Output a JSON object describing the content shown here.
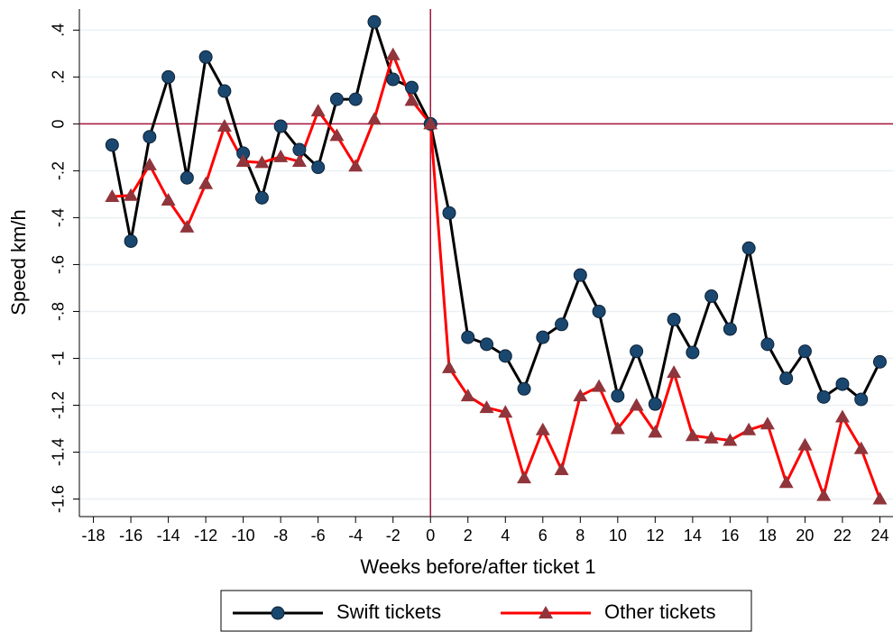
{
  "chart_data": {
    "type": "line",
    "xlabel": "Weeks before/after ticket 1",
    "ylabel": "Speed km/h",
    "x": [
      -17,
      -16,
      -15,
      -14,
      -13,
      -12,
      -11,
      -10,
      -9,
      -8,
      -7,
      -6,
      -5,
      -4,
      -3,
      -2,
      -1,
      0,
      1,
      2,
      3,
      4,
      5,
      6,
      7,
      8,
      9,
      10,
      11,
      12,
      13,
      14,
      15,
      16,
      17,
      18,
      19,
      20,
      21,
      22,
      23,
      24
    ],
    "series": [
      {
        "name": "Swift tickets",
        "color": "#000000",
        "marker": "circle",
        "marker_color": "#1a476f",
        "values": [
          -0.09,
          -0.5,
          -0.055,
          0.2,
          -0.23,
          0.285,
          0.14,
          -0.125,
          -0.315,
          -0.01,
          -0.11,
          -0.185,
          0.105,
          0.105,
          0.435,
          0.19,
          0.155,
          0,
          -0.38,
          -0.91,
          -0.94,
          -0.99,
          -1.13,
          -0.91,
          -0.855,
          -0.645,
          -0.8,
          -1.16,
          -0.97,
          -1.195,
          -0.835,
          -0.975,
          -0.735,
          -0.875,
          -0.53,
          -0.94,
          -1.085,
          -0.97,
          -1.165,
          -1.11,
          -1.175,
          -1.015
        ]
      },
      {
        "name": "Other tickets",
        "color": "#ff0000",
        "marker": "triangle",
        "marker_color": "#90353b",
        "values": [
          -0.31,
          -0.305,
          -0.175,
          -0.325,
          -0.44,
          -0.255,
          -0.01,
          -0.16,
          -0.165,
          -0.14,
          -0.16,
          0.055,
          -0.05,
          -0.18,
          0.02,
          0.295,
          0.1,
          0,
          -1.04,
          -1.16,
          -1.21,
          -1.23,
          -1.51,
          -1.305,
          -1.475,
          -1.16,
          -1.12,
          -1.3,
          -1.2,
          -1.315,
          -1.06,
          -1.33,
          -1.34,
          -1.35,
          -1.305,
          -1.28,
          -1.53,
          -1.37,
          -1.585,
          -1.25,
          -1.385,
          -1.6
        ]
      }
    ],
    "xlim": [
      -18.75,
      24.7
    ],
    "ylim": [
      -1.675,
      0.49
    ],
    "xticks": [
      -18,
      -16,
      -14,
      -12,
      -10,
      -8,
      -6,
      -4,
      -2,
      0,
      2,
      4,
      6,
      8,
      10,
      12,
      14,
      16,
      18,
      20,
      22,
      24
    ],
    "yticks": [
      {
        "value": 0.4,
        "label": ".4"
      },
      {
        "value": 0.2,
        "label": ".2"
      },
      0,
      {
        "value": -0.2,
        "label": "-.2"
      },
      {
        "value": -0.4,
        "label": "-.4"
      },
      {
        "value": -0.6,
        "label": "-.6"
      },
      {
        "value": -0.8,
        "label": "-.8"
      },
      -1,
      -1.2,
      -1.4,
      -1.6
    ],
    "grid": true,
    "hline": 0,
    "vline": 0,
    "refline_color": "#a3143c",
    "legend_position": "bottom"
  }
}
